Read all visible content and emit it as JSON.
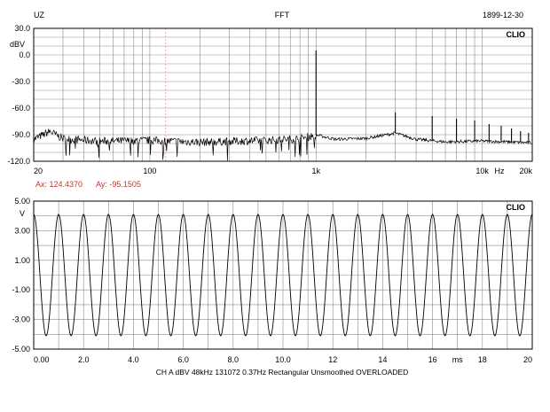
{
  "header": {
    "left": "UZ",
    "center": "FFT",
    "right": "1899-12-30"
  },
  "cursor": {
    "ax": "Ax: 124.4370",
    "ay": "Ay: -95.1505",
    "color": "#c0392b"
  },
  "footer": "CH A   dBV   48kHz   131072   0.37Hz   Rectangular   Unsmoothed   OVERLOADED",
  "chart_data": [
    {
      "type": "line",
      "badge": "CLIO",
      "xscale": "log",
      "xlim": [
        20,
        20000
      ],
      "ylim": [
        -120,
        30
      ],
      "xunit": "Hz",
      "yunit": "dBV",
      "ytick_labels": [
        "30.0",
        "0.0",
        "-30.0",
        "-60.0",
        "-90.0",
        "-120.0"
      ],
      "xtick_labels": [
        {
          "value": 20,
          "label": "20"
        },
        {
          "value": 100,
          "label": "100"
        },
        {
          "value": 1000,
          "label": "1k"
        },
        {
          "value": 10000,
          "label": "10k"
        },
        {
          "value": 20000,
          "label": "20k"
        }
      ],
      "cursor_x": 124.437,
      "noise_floor": [
        {
          "x": 20,
          "y": -95
        },
        {
          "x": 25,
          "y": -86
        },
        {
          "x": 30,
          "y": -94
        },
        {
          "x": 50,
          "y": -97
        },
        {
          "x": 100,
          "y": -96
        },
        {
          "x": 200,
          "y": -98
        },
        {
          "x": 500,
          "y": -96
        },
        {
          "x": 800,
          "y": -94
        },
        {
          "x": 1000,
          "y": -90
        },
        {
          "x": 1300,
          "y": -95
        },
        {
          "x": 2000,
          "y": -94
        },
        {
          "x": 3000,
          "y": -88
        },
        {
          "x": 4000,
          "y": -95
        },
        {
          "x": 6000,
          "y": -98
        },
        {
          "x": 10000,
          "y": -97
        },
        {
          "x": 20000,
          "y": -99
        }
      ],
      "peaks": [
        {
          "x": 1000,
          "y": 5
        },
        {
          "x": 3000,
          "y": -65
        },
        {
          "x": 5000,
          "y": -69
        },
        {
          "x": 7000,
          "y": -72
        },
        {
          "x": 9000,
          "y": -74
        },
        {
          "x": 11000,
          "y": -78
        },
        {
          "x": 13000,
          "y": -80
        },
        {
          "x": 15000,
          "y": -83
        },
        {
          "x": 17000,
          "y": -86
        },
        {
          "x": 19000,
          "y": -88
        }
      ]
    },
    {
      "type": "line",
      "badge": "CLIO",
      "xlim": [
        0,
        20
      ],
      "ylim": [
        -5,
        5
      ],
      "xunit": "ms",
      "yunit": "V",
      "ytick_labels": [
        "5.00",
        "3.00",
        "1.00",
        "-1.00",
        "-3.00",
        "-5.00"
      ],
      "xtick_labels": [
        "0.00",
        "2.0",
        "4.0",
        "6.0",
        "8.0",
        "10.0",
        "12",
        "14",
        "16",
        "ms",
        "18",
        "20"
      ],
      "waveform": {
        "shape": "sine",
        "amplitude": 4.1,
        "frequency_khz": 1.0,
        "phase_deg": 90
      }
    }
  ]
}
